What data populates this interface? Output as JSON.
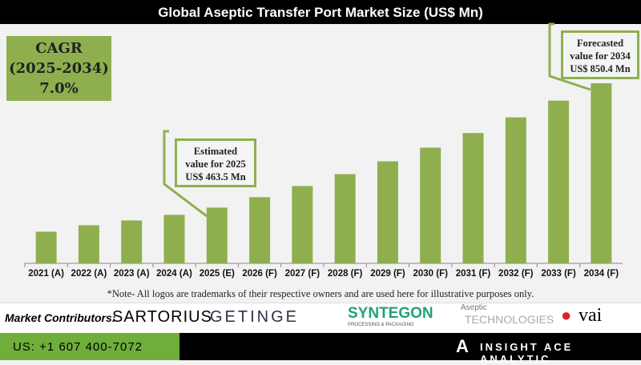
{
  "title": "Global Aseptic Transfer Port Market Size (US$ Mn)",
  "cagr": {
    "line1": "CAGR",
    "line2": "(2025-2034)",
    "line3": "7.0%"
  },
  "callout_2025": {
    "line1": "Estimated",
    "line2": "value for 2025",
    "line3": "US$ 463.5 Mn"
  },
  "callout_2034": {
    "line1": "Forecasted",
    "line2": "value for 2034",
    "line3": "US$ 850.4 Mn"
  },
  "note": "*Note- All logos are trademarks of their respective owners and are used here for illustrative purposes only.",
  "contributors": {
    "label": "Market Contributors:",
    "logos": [
      "SARTORIUS",
      "GETINGE",
      "SYNTEGON",
      "PROCESSING & PACKAGING",
      "Aseptic",
      "TECHNOLOGIES",
      "vai"
    ]
  },
  "footer": {
    "phone": "US: +1 607 400-7072",
    "brand": "INSIGHT ACE ANALYTIC"
  },
  "colors": {
    "bar": "#8faf4f",
    "title_bg": "#000000",
    "footer_green": "#6fae3a"
  },
  "chart_data": {
    "type": "bar",
    "title": "Global Aseptic Transfer Port Market Size (US$ Mn)",
    "categories": [
      "2021 (A)",
      "2022 (A)",
      "2023 (A)",
      "2024 (A)",
      "2025 (E)",
      "2026 (F)",
      "2027 (F)",
      "2028 (F)",
      "2029 (F)",
      "2030 (F)",
      "2031 (F)",
      "2032 (F)",
      "2033 (F)",
      "2034 (F)"
    ],
    "values": [
      388.6,
      408.6,
      423.6,
      441.0,
      463.5,
      496.0,
      530.7,
      567.8,
      607.6,
      650.1,
      695.6,
      744.3,
      796.4,
      850.4
    ],
    "ylim": [
      290,
      1010
    ],
    "grid": false,
    "xlabel": "",
    "ylabel": ""
  }
}
